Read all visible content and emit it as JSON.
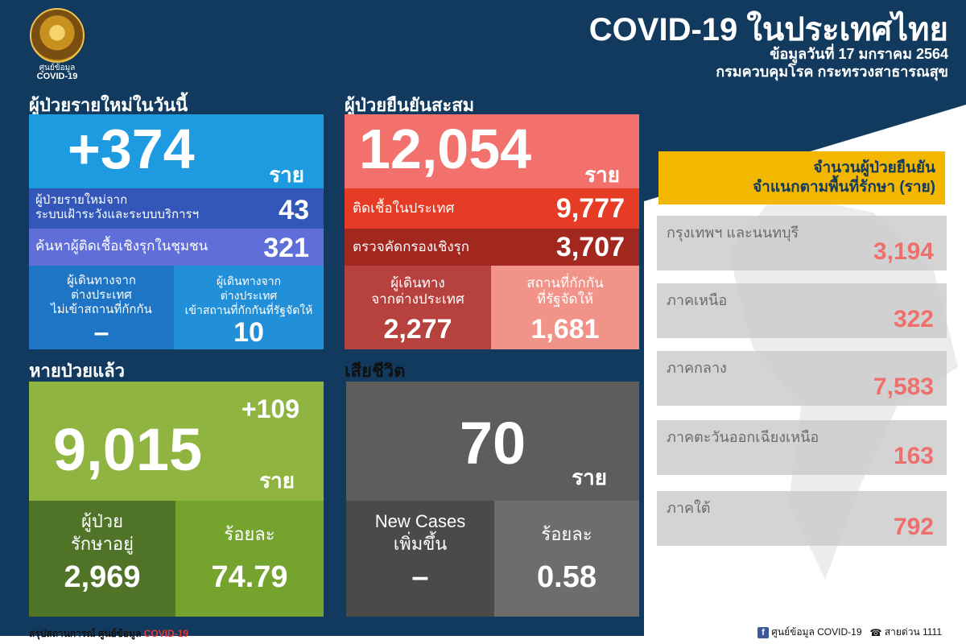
{
  "header": {
    "logo_caption_line1": "ศูนย์ข้อมูล",
    "logo_caption_line2": "COVID-19",
    "title": "COVID-19 ในประเทศไทย",
    "date_line": "ข้อมูลวันที่ 17 มกราคม 2564",
    "agency_line": "กรมควบคุมโรค กระทรวงสาธารณสุข"
  },
  "new_cases": {
    "section_label": "ผู้ป่วยรายใหม่ในวันนี้",
    "total": "+374",
    "unit": "ราย",
    "surveillance_label": "ผู้ป่วยรายใหม่จาก\nระบบเฝ้าระวังและระบบบริการฯ",
    "surveillance_value": "43",
    "community_label": "ค้นหาผู้ติดเชื้อเชิงรุกในชุมชน",
    "community_value": "321",
    "abroad_no_quarantine_label": "ผู้เดินทางจาก\nต่างประเทศ\nไม่เข้าสถานที่กักกัน",
    "abroad_no_quarantine_value": "–",
    "abroad_quarantine_label": "ผู้เดินทางจาก\nต่างประเทศ\nเข้าสถานที่กักกันที่รัฐจัดให้",
    "abroad_quarantine_value": "10"
  },
  "cumulative": {
    "section_label": "ผู้ป่วยยืนยันสะสม",
    "total": "12,054",
    "unit": "ราย",
    "domestic_label": "ติดเชื้อในประเทศ",
    "domestic_value": "9,777",
    "active_screening_label": "ตรวจคัดกรองเชิงรุก",
    "active_screening_value": "3,707",
    "travelers_label": "ผู้เดินทาง\nจากต่างประเทศ",
    "travelers_value": "2,277",
    "state_quarantine_label": "สถานที่กักกัน\nที่รัฐจัดให้",
    "state_quarantine_value": "1,681"
  },
  "recovered": {
    "section_label": "หายป่วยแล้ว",
    "delta": "+109",
    "total": "9,015",
    "unit": "ราย",
    "in_treatment_label": "ผู้ป่วย\nรักษาอยู่",
    "in_treatment_value": "2,969",
    "percent_label": "ร้อยละ",
    "percent_value": "74.79"
  },
  "deaths": {
    "section_label": "เสียชีวิต",
    "total": "70",
    "unit": "ราย",
    "new_cases_label": "New Cases\nเพิ่มขึ้น",
    "new_cases_value": "–",
    "percent_label": "ร้อยละ",
    "percent_value": "0.58"
  },
  "regions": {
    "title": "จำนวนผู้ป่วยยืนยัน\nจำแนกตามพื้นที่รักษา (ราย)",
    "items": [
      {
        "name": "กรุงเทพฯ และนนทบุรี",
        "value": "3,194"
      },
      {
        "name": "ภาคเหนือ",
        "value": "322"
      },
      {
        "name": "ภาคกลาง",
        "value": "7,583"
      },
      {
        "name": "ภาคตะวันออกเฉียงเหนือ",
        "value": "163"
      },
      {
        "name": "ภาคใต้",
        "value": "792"
      }
    ]
  },
  "footer": {
    "left_prefix": "สรุปสถานการณ์ ศูนย์ข้อมูล ",
    "left_accent": "COVID-19",
    "fb_text": "ศูนย์ข้อมูล COVID-19",
    "hotline_text": "สายด่วน 1111"
  },
  "colors": {
    "dark_blue": "#123a5e",
    "new_cases_blue": "#1e9be0",
    "cumulative_salmon": "#f2716d",
    "recovered_green": "#8fb440",
    "deaths_gray": "#5d5d5d",
    "region_title_yellow": "#f3b700",
    "region_value_red": "#ef6f6c"
  }
}
